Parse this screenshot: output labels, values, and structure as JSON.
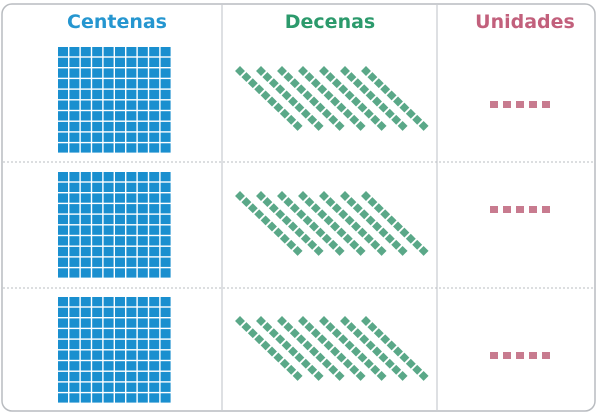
{
  "header": {
    "columns": [
      "Centenas",
      "Decenas",
      "Unidades"
    ]
  },
  "rows": [
    {
      "hundreds": 1,
      "tens": 7,
      "units": 5
    },
    {
      "hundreds": 1,
      "tens": 7,
      "units": 5
    },
    {
      "hundreds": 1,
      "tens": 7,
      "units": 5
    }
  ]
}
